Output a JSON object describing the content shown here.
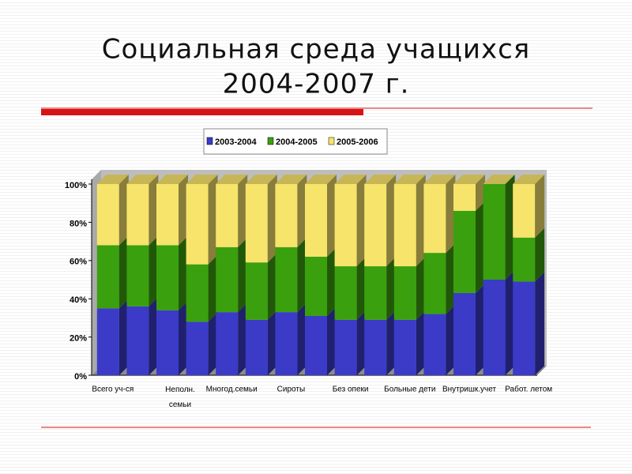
{
  "chart_data": {
    "type": "bar3d_stacked",
    "title": [
      "Социальная среда учащихся",
      "2004-2007 г."
    ],
    "categories": [
      "Всего уч-ся",
      null,
      "Неполн. семьи",
      null,
      "Многод.семьи",
      null,
      "Сироты",
      null,
      "Без опеки",
      null,
      "Больные дети",
      null,
      "Внутришк.учет",
      null,
      "Работ. летом"
    ],
    "series": [
      {
        "name": "2003-2004",
        "color": "#3b3bc8",
        "values": [
          35,
          36,
          34,
          28,
          33,
          29,
          33,
          31,
          29,
          29,
          29,
          32,
          43,
          50,
          49
        ]
      },
      {
        "name": "2004-2005",
        "color": "#3aa00e",
        "values": [
          33,
          32,
          34,
          30,
          34,
          30,
          34,
          31,
          28,
          28,
          28,
          32,
          43,
          50,
          23
        ]
      },
      {
        "name": "2005-2006",
        "color": "#f7e46a",
        "values": [
          32,
          32,
          32,
          42,
          33,
          41,
          33,
          38,
          43,
          43,
          43,
          36,
          14,
          0,
          28
        ]
      }
    ],
    "ylim": [
      0,
      100
    ],
    "yticks": [
      {
        "value": 0,
        "label": "0%"
      },
      {
        "value": 20,
        "label": "20%"
      },
      {
        "value": 40,
        "label": "40%"
      },
      {
        "value": 60,
        "label": "60%"
      },
      {
        "value": 80,
        "label": "80%"
      },
      {
        "value": 100,
        "label": "100%"
      }
    ],
    "grid": false,
    "legend": "top"
  }
}
